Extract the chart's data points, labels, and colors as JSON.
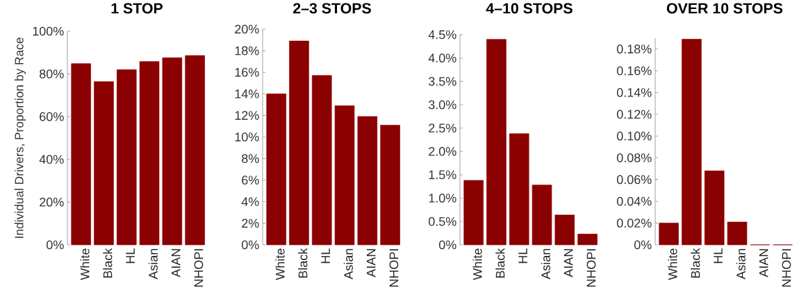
{
  "chart_data": [
    {
      "type": "bar",
      "title": "1 STOP",
      "ylabel": "Individual Drivers, Proportion by Race",
      "categories": [
        "White",
        "Black",
        "HL",
        "Asian",
        "AIAN",
        "NHOPI"
      ],
      "values": [
        84.8,
        76.4,
        82,
        85.8,
        87.6,
        88.6
      ],
      "color": "#8b0000",
      "ylim": [
        0,
        100
      ],
      "yticks": [
        {
          "value": 0,
          "label": "0%"
        },
        {
          "value": 20,
          "label": "20%"
        },
        {
          "value": 40,
          "label": "40%"
        },
        {
          "value": 60,
          "label": "60%"
        },
        {
          "value": 80,
          "label": "80%"
        },
        {
          "value": 100,
          "label": "100%"
        }
      ]
    },
    {
      "type": "bar",
      "title": "2–3 STOPS",
      "categories": [
        "White",
        "Black",
        "HL",
        "Asian",
        "AIAN",
        "NHOPI"
      ],
      "values": [
        14,
        18.9,
        15.7,
        12.9,
        11.9,
        11.1
      ],
      "color": "#8b0000",
      "ylim": [
        0,
        20
      ],
      "yticks": [
        {
          "value": 0,
          "label": "0%"
        },
        {
          "value": 2,
          "label": "2%"
        },
        {
          "value": 4,
          "label": "4%"
        },
        {
          "value": 6,
          "label": "6%"
        },
        {
          "value": 8,
          "label": "8%"
        },
        {
          "value": 10,
          "label": "10%"
        },
        {
          "value": 12,
          "label": "12%"
        },
        {
          "value": 14,
          "label": "14%"
        },
        {
          "value": 16,
          "label": "16%"
        },
        {
          "value": 18,
          "label": "18%"
        },
        {
          "value": 20,
          "label": "20%"
        }
      ]
    },
    {
      "type": "bar",
      "title": "4–10 STOPS",
      "categories": [
        "White",
        "Black",
        "HL",
        "Asian",
        "AIAN",
        "NHOPI"
      ],
      "values": [
        1.38,
        4.4,
        2.38,
        1.28,
        0.64,
        0.23
      ],
      "color": "#8b0000",
      "ylim": [
        0,
        4.5
      ],
      "yticks": [
        {
          "value": 0,
          "label": "0%"
        },
        {
          "value": 0.5,
          "label": "0.5%"
        },
        {
          "value": 1,
          "label": "1.0%"
        },
        {
          "value": 1.5,
          "label": "1.5%"
        },
        {
          "value": 2,
          "label": "2.0%"
        },
        {
          "value": 2.5,
          "label": "2.5%"
        },
        {
          "value": 3,
          "label": "3.0%"
        },
        {
          "value": 3.5,
          "label": "3.5%"
        },
        {
          "value": 4,
          "label": "4.0%"
        },
        {
          "value": 4.5,
          "label": "4.5%"
        }
      ]
    },
    {
      "type": "bar",
      "title": "OVER 10 STOPS",
      "categories": [
        "White",
        "Black",
        "HL",
        "Asian",
        "AIAN",
        "NHOPI"
      ],
      "values": [
        0.02,
        0.189,
        0.068,
        0.021,
        0,
        0
      ],
      "color": "#8b0000",
      "ylim": [
        0,
        0.19
      ],
      "yticks": [
        {
          "value": 0,
          "label": "0%"
        },
        {
          "value": 0.02,
          "label": "0.02%"
        },
        {
          "value": 0.04,
          "label": "0.04%"
        },
        {
          "value": 0.06,
          "label": "0.06%"
        },
        {
          "value": 0.08,
          "label": "0.08%"
        },
        {
          "value": 0.1,
          "label": "0.10%"
        },
        {
          "value": 0.12,
          "label": "0.12%"
        },
        {
          "value": 0.14,
          "label": "0.14%"
        },
        {
          "value": 0.16,
          "label": "0.16%"
        },
        {
          "value": 0.18,
          "label": "0.18%"
        }
      ]
    }
  ]
}
